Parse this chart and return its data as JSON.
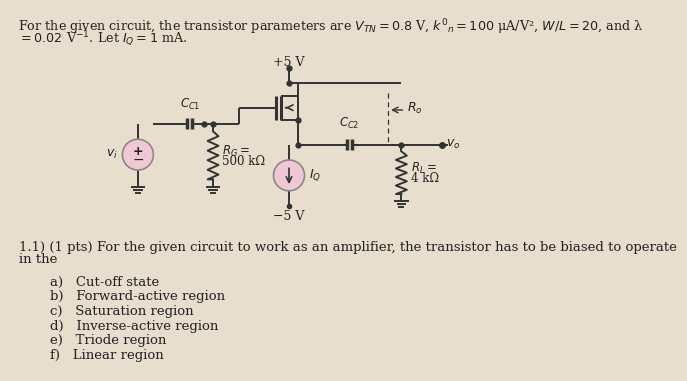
{
  "bg_color": "#e8dece",
  "text_color": "#222222",
  "circuit_color": "#333333",
  "source_face": "#f0c8d4",
  "source_edge": "#888888",
  "header1": "For the given circuit, the transistor parameters are $V_{TN}=0.8$ V, $k'_n=100$ μA/V², $W/L=20$, and λ",
  "header2": "$=0.02$ V$^{-1}$. Let $I_Q=1$ mA.",
  "label_CC1": "$C_{C1}$",
  "label_CC2": "$C_{C2}$",
  "label_RG": "$R_G=$",
  "label_RG2": "500 kΩ",
  "label_Ro": "$R_o$",
  "label_RL": "$R_L=$",
  "label_RL2": "4 kΩ",
  "label_IQ": "$I_Q$",
  "label_vi": "$v_i$",
  "label_vo": "$v_o$",
  "label_vdd": "+5 V",
  "label_vss": "−5 V",
  "q_text1": "1.1) (1 pts) For the given circuit to work as an amplifier, the transistor has to be biased to operate",
  "q_text2": "in the",
  "choices": [
    "a)   Cut-off state",
    "b)   Forward-active region",
    "c)   Saturation region",
    "d)   Inverse-active region",
    "e)   Triode region",
    "f)   Linear region"
  ]
}
